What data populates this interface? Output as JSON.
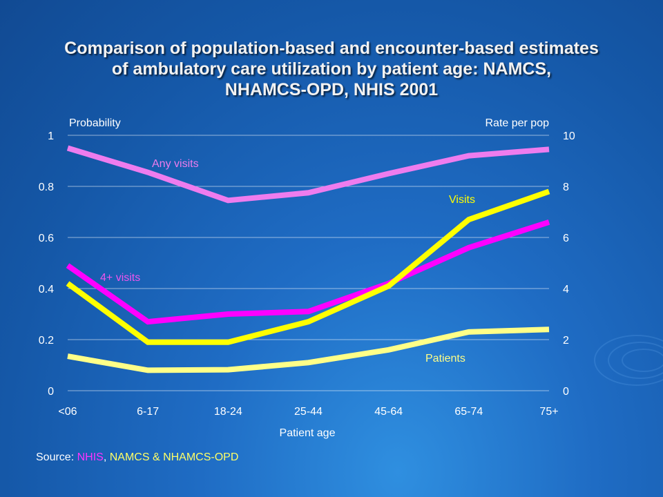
{
  "title_lines": [
    "Comparison of population-based and encounter-based estimates",
    "of ambulatory care utilization by patient age: NAMCS,",
    "NHAMCS-OPD, NHIS 2001"
  ],
  "source": {
    "prefix": "Source: ",
    "nhis": "NHIS",
    "sep": ", ",
    "rest": "NAMCS & NHAMCS-OPD",
    "nhis_color": "#ff33ff",
    "rest_color": "#ffff66"
  },
  "chart_data": {
    "type": "line",
    "categories": [
      "<06",
      "6-17",
      "18-24",
      "25-44",
      "45-64",
      "65-74",
      "75+"
    ],
    "xlabel": "Patient age",
    "ylabel_left": "Probability",
    "ylabel_right": "Rate per pop",
    "ylim_left": [
      0,
      1
    ],
    "ylim_right": [
      0,
      10
    ],
    "yticks_left": [
      "0",
      "0.2",
      "0.4",
      "0.6",
      "0.8",
      "1"
    ],
    "yticks_right": [
      "0",
      "2",
      "4",
      "6",
      "8",
      "10"
    ],
    "grid": true,
    "series": [
      {
        "name": "Any visits",
        "axis": "left",
        "color": "#ee7cee",
        "values": [
          0.95,
          0.855,
          0.745,
          0.775,
          0.85,
          0.92,
          0.945
        ]
      },
      {
        "name": "4+ visits",
        "axis": "left",
        "color": "#ff00ff",
        "values": [
          0.49,
          0.27,
          0.3,
          0.31,
          0.42,
          0.56,
          0.66
        ]
      },
      {
        "name": "Visits",
        "axis": "right",
        "color": "#ffff00",
        "values": [
          4.2,
          1.9,
          1.9,
          2.7,
          4.1,
          6.7,
          7.8
        ]
      },
      {
        "name": "Patients",
        "axis": "right",
        "color": "#ffff88",
        "values": [
          1.35,
          0.8,
          0.82,
          1.1,
          1.6,
          2.3,
          2.4
        ]
      }
    ]
  }
}
